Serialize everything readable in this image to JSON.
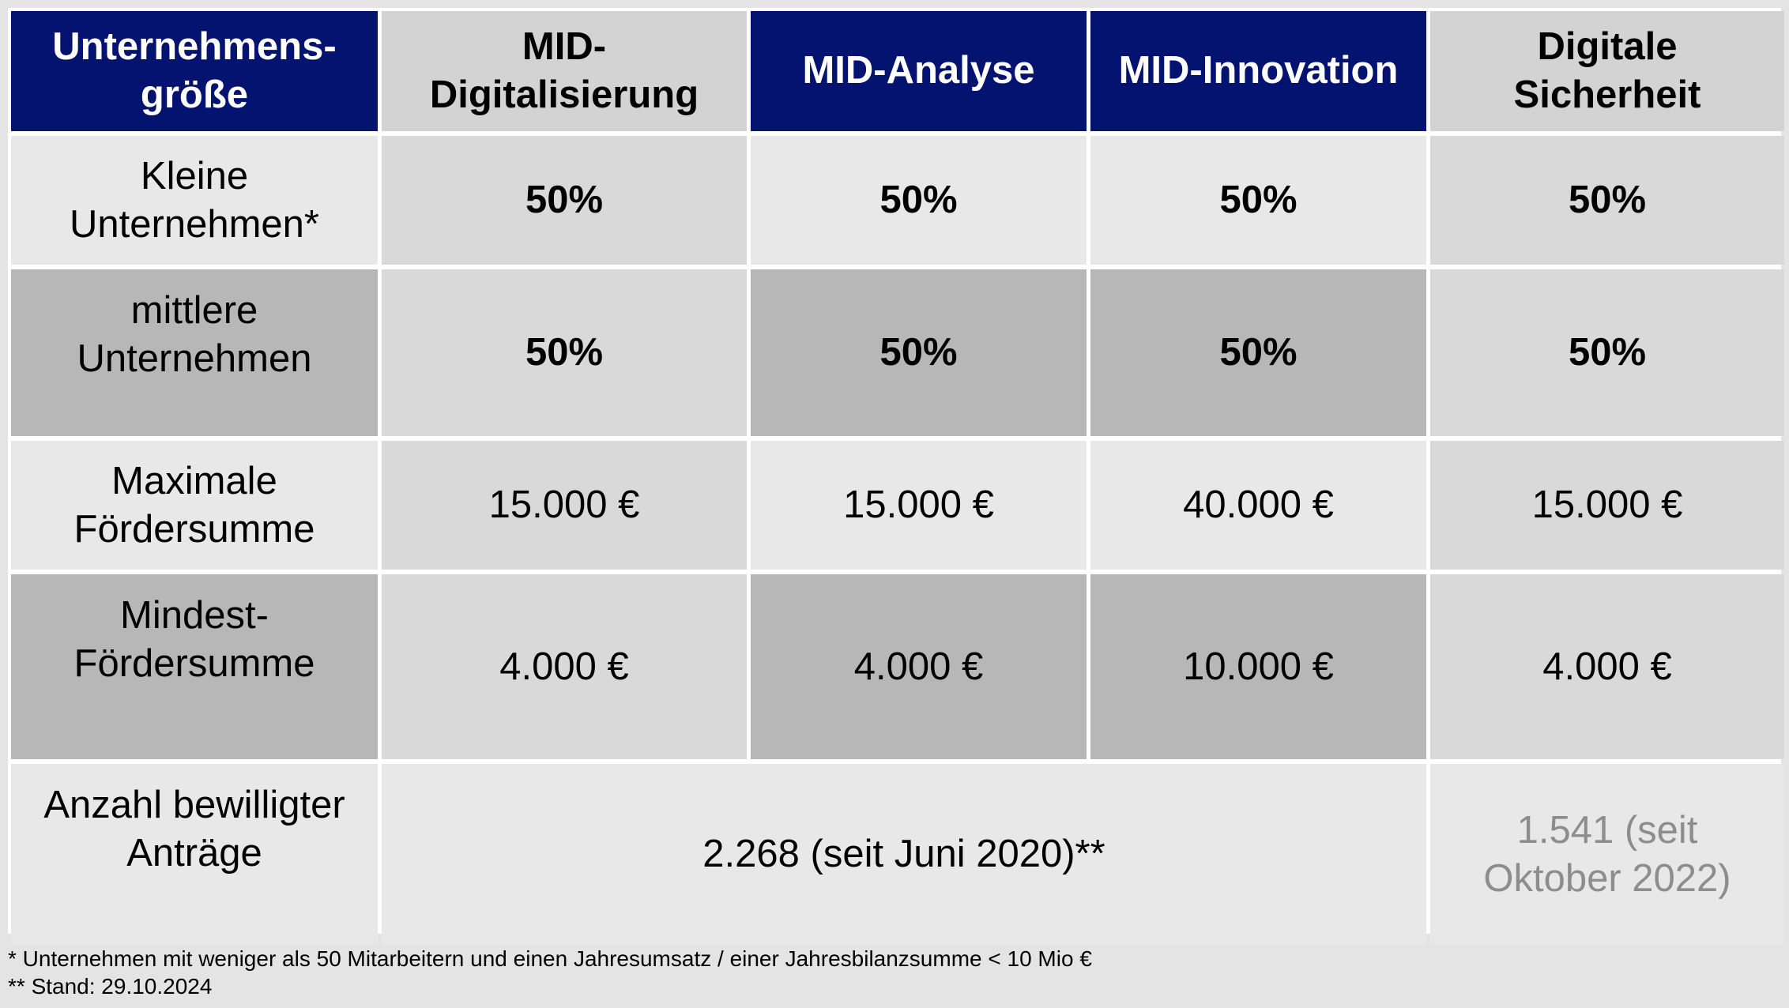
{
  "table": {
    "headers": [
      "Unternehmens-\ngröße",
      "MID-\nDigitalisierung",
      "MID-Analyse",
      "MID-Innovation",
      "Digitale\nSicherheit"
    ],
    "rows": [
      {
        "label": "Kleine\nUnternehmen*",
        "values": [
          "50%",
          "50%",
          "50%",
          "50%"
        ]
      },
      {
        "label": "mittlere\nUnternehmen",
        "values": [
          "50%",
          "50%",
          "50%",
          "50%"
        ]
      },
      {
        "label": "Maximale\nFördersumme",
        "values": [
          "15.000 €",
          "15.000 €",
          "40.000 €",
          "15.000 €"
        ]
      },
      {
        "label": "Mindest-\nFördersumme",
        "values": [
          "4.000 €",
          "4.000 €",
          "10.000 €",
          "4.000 €"
        ]
      }
    ],
    "applications": {
      "label": "Anzahl bewilligter\nAnträge",
      "mid_value": "2.268 (seit Juni 2020)**",
      "security_value": "1.541 (seit\nOktober 2022)"
    }
  },
  "footnotes": [
    "* Unternehmen mit weniger als 50 Mitarbeitern und einen Jahresumsatz / einer Jahresbilanzsumme < 10 Mio €",
    "** Stand: 29.10.2024"
  ],
  "colors": {
    "header_navy": "#04136f",
    "header_gray": "#d3d3d3",
    "cell_light": "#e8e8e8",
    "cell_mid": "#d9d9d9",
    "cell_dark": "#b7b7b7",
    "muted_text": "#8d8d8d"
  }
}
